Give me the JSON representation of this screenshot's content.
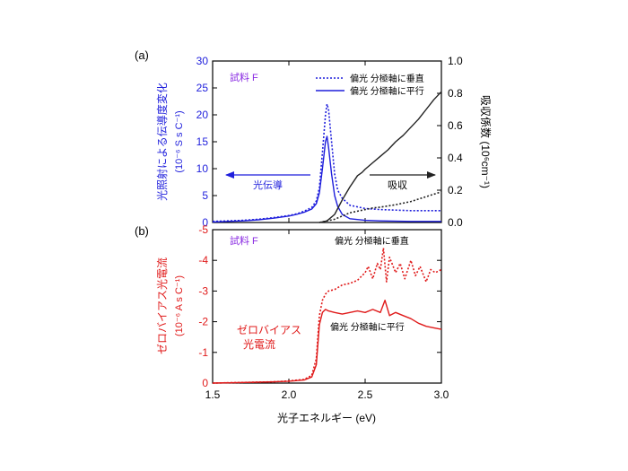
{
  "panel_a": {
    "label": "(a)",
    "sample_label": "試料 F",
    "y_left_title_line1": "光照射による伝導度変化",
    "y_left_title_line2": "(10⁻⁶ S s C⁻¹)",
    "y_right_title": "吸収係数 (10⁶cm⁻¹)",
    "legend": {
      "perpendicular": "偏光 分極軸に垂直",
      "parallel": "偏光 分極軸に平行"
    },
    "arrow_left_label": "光伝導",
    "arrow_right_label": "吸収"
  },
  "panel_b": {
    "label": "(b)",
    "sample_label": "試料 F",
    "y_title_line1": "ゼロバイアス光電流",
    "y_title_line2": "(10⁻⁶ A s C⁻¹)",
    "inner_label_line1": "ゼロバイアス",
    "inner_label_line2": "光電流",
    "annot_perpendicular": "偏光 分極軸に垂直",
    "annot_parallel": "偏光 分極軸に平行"
  },
  "x_axis_title": "光子エネルギー (eV)",
  "colors": {
    "blue": "#1f1fdc",
    "red": "#e01a1a",
    "black": "#222222",
    "purple": "#8a2be2"
  },
  "chart_data": [
    {
      "type": "line",
      "title": "(a)",
      "xlabel": "光子エネルギー (eV)",
      "xlim": [
        1.5,
        3.0
      ],
      "x_ticks": [
        "1.5",
        "2.0",
        "2.5",
        "3.0"
      ],
      "ylabel": "光照射による伝導度変化 (10⁻⁶ S s C⁻¹)",
      "ylim": [
        0,
        30
      ],
      "y_ticks": [
        "0",
        "5",
        "10",
        "15",
        "20",
        "25",
        "30"
      ],
      "y2label": "吸収係数 (10⁶cm⁻¹)",
      "y2lim": [
        0,
        1.0
      ],
      "y2_ticks": [
        "0.0",
        "0.2",
        "0.4",
        "0.6",
        "0.8",
        "1.0"
      ],
      "series": [
        {
          "name": "光伝導 偏光 分極軸に垂直",
          "axis": "left",
          "color": "#1f1fdc",
          "style": "dotted",
          "x": [
            1.5,
            1.6,
            1.7,
            1.8,
            1.9,
            2.0,
            2.05,
            2.1,
            2.15,
            2.18,
            2.2,
            2.22,
            2.24,
            2.25,
            2.26,
            2.28,
            2.3,
            2.32,
            2.35,
            2.4,
            2.5,
            2.6,
            2.8,
            3.0
          ],
          "y": [
            0.2,
            0.3,
            0.4,
            0.6,
            0.9,
            1.3,
            1.6,
            2.1,
            2.8,
            4.0,
            6.5,
            13.0,
            20.0,
            22.0,
            21.0,
            15.0,
            9.0,
            6.0,
            4.5,
            3.2,
            2.6,
            2.4,
            2.2,
            2.2
          ]
        },
        {
          "name": "光伝導 偏光 分極軸に平行",
          "axis": "left",
          "color": "#1f1fdc",
          "style": "solid",
          "x": [
            1.5,
            1.6,
            1.7,
            1.8,
            1.9,
            2.0,
            2.05,
            2.1,
            2.15,
            2.18,
            2.2,
            2.22,
            2.24,
            2.25,
            2.26,
            2.28,
            2.3,
            2.32,
            2.35,
            2.4,
            2.5,
            2.6,
            2.8,
            3.0
          ],
          "y": [
            0.1,
            0.2,
            0.3,
            0.5,
            0.8,
            1.2,
            1.5,
            1.9,
            2.5,
            3.5,
            5.5,
            10.0,
            15.0,
            16.0,
            14.0,
            9.0,
            5.0,
            3.0,
            1.5,
            0.7,
            0.4,
            0.3,
            0.2,
            0.2
          ]
        },
        {
          "name": "吸収 偏光 分極軸に平行",
          "axis": "right",
          "color": "#222222",
          "style": "solid",
          "x": [
            2.2,
            2.25,
            2.3,
            2.35,
            2.4,
            2.45,
            2.48,
            2.5,
            2.55,
            2.6,
            2.65,
            2.7,
            2.75,
            2.8,
            2.85,
            2.9,
            2.95,
            3.0
          ],
          "y": [
            0.0,
            0.01,
            0.05,
            0.14,
            0.22,
            0.29,
            0.31,
            0.33,
            0.37,
            0.41,
            0.45,
            0.5,
            0.54,
            0.59,
            0.64,
            0.7,
            0.76,
            0.81
          ]
        },
        {
          "name": "吸収 偏光 分極軸に垂直",
          "axis": "right",
          "color": "#222222",
          "style": "dotted",
          "x": [
            2.2,
            2.25,
            2.3,
            2.35,
            2.4,
            2.45,
            2.5,
            2.55,
            2.6,
            2.7,
            2.8,
            2.9,
            3.0
          ],
          "y": [
            0.0,
            0.01,
            0.02,
            0.04,
            0.06,
            0.07,
            0.08,
            0.09,
            0.095,
            0.11,
            0.13,
            0.16,
            0.19
          ]
        }
      ]
    },
    {
      "type": "line",
      "title": "(b)",
      "xlabel": "光子エネルギー (eV)",
      "xlim": [
        1.5,
        3.0
      ],
      "x_ticks": [
        "1.5",
        "2.0",
        "2.5",
        "3.0"
      ],
      "ylabel": "ゼロバイアス光電流 (10⁻⁶ A s C⁻¹)",
      "ylim": [
        0,
        -5
      ],
      "y_ticks": [
        "0",
        "-1",
        "-2",
        "-3",
        "-4",
        "-5"
      ],
      "series": [
        {
          "name": "偏光 分極軸に垂直",
          "color": "#e01a1a",
          "style": "dotted",
          "x": [
            1.5,
            1.7,
            1.9,
            2.0,
            2.1,
            2.15,
            2.18,
            2.2,
            2.22,
            2.24,
            2.26,
            2.3,
            2.35,
            2.4,
            2.45,
            2.5,
            2.52,
            2.55,
            2.58,
            2.6,
            2.62,
            2.64,
            2.66,
            2.7,
            2.73,
            2.76,
            2.8,
            2.83,
            2.86,
            2.9,
            2.93,
            2.96,
            3.0
          ],
          "y": [
            0.0,
            -0.02,
            -0.04,
            -0.07,
            -0.12,
            -0.25,
            -0.8,
            -2.2,
            -2.7,
            -2.9,
            -3.0,
            -3.05,
            -3.2,
            -3.25,
            -3.35,
            -3.6,
            -3.8,
            -3.4,
            -3.9,
            -3.7,
            -4.4,
            -3.3,
            -4.1,
            -3.6,
            -3.9,
            -3.4,
            -4.0,
            -3.5,
            -3.8,
            -3.3,
            -3.7,
            -3.6,
            -3.7
          ]
        },
        {
          "name": "偏光 分極軸に平行",
          "color": "#e01a1a",
          "style": "solid",
          "x": [
            1.5,
            1.7,
            1.9,
            2.0,
            2.1,
            2.15,
            2.18,
            2.2,
            2.22,
            2.24,
            2.26,
            2.3,
            2.35,
            2.4,
            2.45,
            2.5,
            2.55,
            2.6,
            2.63,
            2.66,
            2.7,
            2.75,
            2.8,
            2.85,
            2.9,
            2.95,
            3.0
          ],
          "y": [
            0.0,
            -0.02,
            -0.04,
            -0.06,
            -0.1,
            -0.2,
            -0.6,
            -1.9,
            -2.3,
            -2.4,
            -2.35,
            -2.3,
            -2.25,
            -2.3,
            -2.35,
            -2.3,
            -2.4,
            -2.3,
            -2.7,
            -2.2,
            -2.3,
            -2.2,
            -2.1,
            -1.95,
            -1.85,
            -1.8,
            -1.75
          ]
        }
      ]
    }
  ]
}
